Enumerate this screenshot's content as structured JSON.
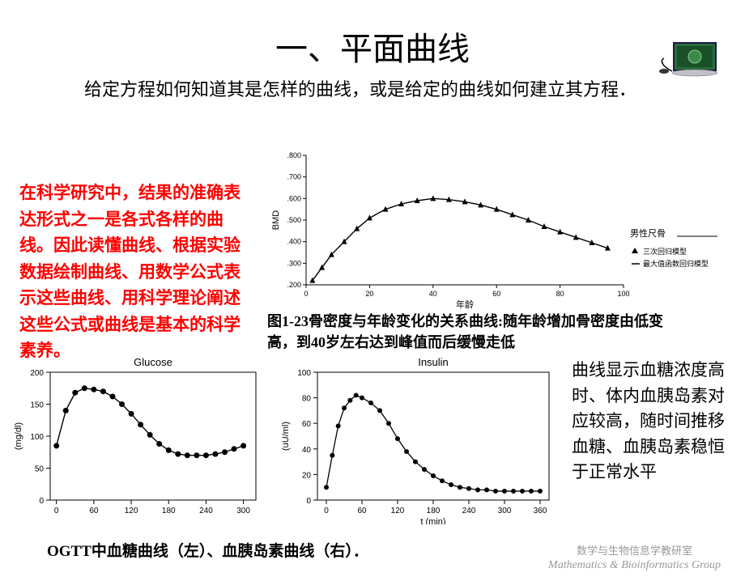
{
  "title": "一、平面曲线",
  "subtitle": "给定方程如何知道其是怎样的曲线，或是给定的曲线如何建立其方程．",
  "redtext": "在科学研究中，结果的准确表达形式之一是各式各样的曲线。因此读懂曲线、根据实验数据绘制曲线、用数学公式表示这些曲线、用科学理论阐述这些公式或曲线是基本的科学素养。",
  "bmd_caption": "图1-23骨密度与年龄变化的关系曲线:随年龄增加骨密度由低变高，到40岁左右达到峰值而后缓慢走低",
  "right_text": "曲线显示血糖浓度高时、体内血胰岛素对应较高，随时间推移血糖、血胰岛素稳恒于正常水平",
  "bottom_caption": "OGTT中血糖曲线（左）、血胰岛素曲线（右）．",
  "footer_cn": "数学与生物信息学教研室",
  "footer_en": "Mathematics & Bioinformatics Group",
  "bmd_chart": {
    "type": "line",
    "ylabel": "BMD",
    "xlabel": "年龄",
    "legend_title": "男性尺骨",
    "legend_items": [
      "三次回归模型",
      "最大值函数回归模型"
    ],
    "xlim": [
      0,
      100
    ],
    "ylim": [
      0.2,
      0.8
    ],
    "xticks": [
      0,
      20,
      40,
      60,
      80,
      100
    ],
    "yticks": [
      0.2,
      0.3,
      0.4,
      0.5,
      0.6,
      0.7,
      0.8
    ],
    "ytick_labels": [
      ".200",
      ".300",
      ".400",
      ".500",
      ".600",
      ".700",
      ".800"
    ],
    "series": [
      {
        "x": [
          2,
          5,
          8,
          12,
          16,
          20,
          25,
          30,
          35,
          40,
          45,
          50,
          55,
          60,
          65,
          70,
          75,
          80,
          85,
          90,
          95
        ],
        "y": [
          0.22,
          0.28,
          0.34,
          0.4,
          0.46,
          0.51,
          0.55,
          0.575,
          0.59,
          0.6,
          0.595,
          0.585,
          0.57,
          0.55,
          0.525,
          0.5,
          0.47,
          0.445,
          0.42,
          0.395,
          0.37
        ],
        "color": "#000000",
        "marker": "triangle",
        "width": 1.4
      }
    ],
    "bg": "#ffffff",
    "axis_color": "#000000",
    "label_fontsize": 11,
    "tick_fontsize": 9
  },
  "glucose_chart": {
    "type": "line",
    "title": "Glucose",
    "ylabel": "(mg/dl)",
    "xlabel": "",
    "xlim": [
      -10,
      320
    ],
    "ylim": [
      0,
      200
    ],
    "xticks": [
      0,
      60,
      120,
      180,
      240,
      300
    ],
    "yticks": [
      0,
      50,
      100,
      150,
      200
    ],
    "x": [
      0,
      15,
      30,
      45,
      60,
      75,
      90,
      105,
      120,
      135,
      150,
      165,
      180,
      195,
      210,
      225,
      240,
      255,
      270,
      285,
      300
    ],
    "y": [
      85,
      140,
      168,
      175,
      173,
      170,
      162,
      150,
      135,
      118,
      102,
      88,
      78,
      72,
      70,
      70,
      70,
      72,
      75,
      80,
      85
    ],
    "color": "#000000",
    "marker_size": 3.5,
    "line_width": 1.4,
    "bg": "#ffffff",
    "tick_fontsize": 10,
    "label_fontsize": 11
  },
  "insulin_chart": {
    "type": "line",
    "title": "Insulin",
    "ylabel": "(uU/ml)",
    "xlabel": "t (min)",
    "xlim": [
      -15,
      375
    ],
    "ylim": [
      0,
      100
    ],
    "xticks": [
      0,
      60,
      120,
      180,
      240,
      300,
      360
    ],
    "yticks": [
      0,
      20,
      40,
      60,
      80,
      100
    ],
    "x": [
      0,
      10,
      20,
      30,
      40,
      50,
      60,
      75,
      90,
      105,
      120,
      135,
      150,
      165,
      180,
      195,
      210,
      225,
      240,
      255,
      270,
      285,
      300,
      315,
      330,
      345,
      360
    ],
    "y": [
      10,
      35,
      58,
      72,
      78,
      82,
      80,
      76,
      70,
      60,
      48,
      38,
      30,
      24,
      19,
      15,
      12,
      10,
      9,
      8,
      8,
      7,
      7,
      7,
      7,
      7,
      7
    ],
    "color": "#000000",
    "marker_size": 3,
    "line_width": 1.3,
    "bg": "#ffffff",
    "tick_fontsize": 10,
    "label_fontsize": 11
  }
}
